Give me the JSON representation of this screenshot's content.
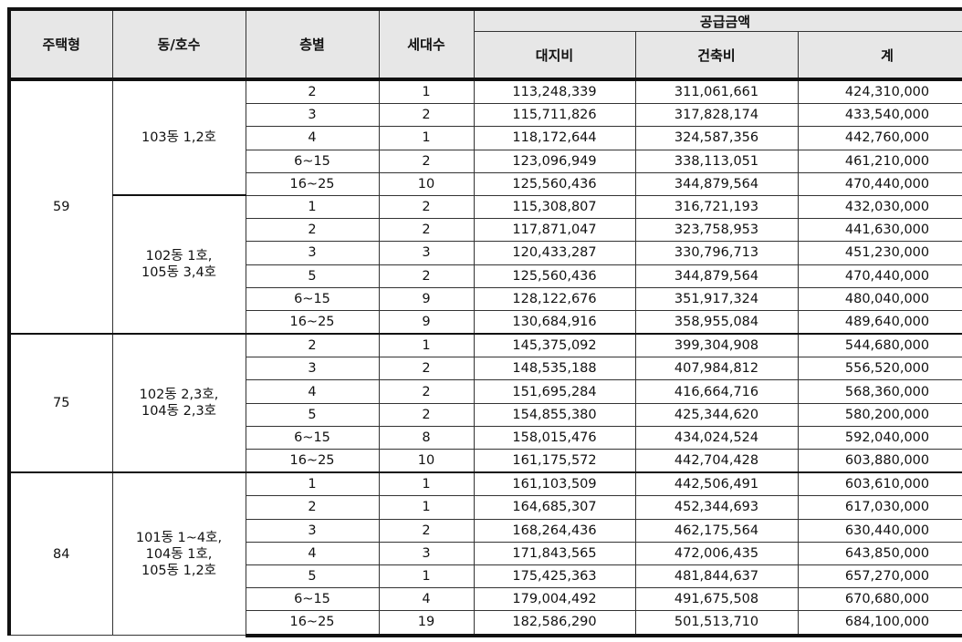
{
  "headers": {
    "type": "주택형",
    "unit": "동/호수",
    "floor": "층별",
    "households": "세대수",
    "supply": "공급금액",
    "land": "대지비",
    "building": "건축비",
    "total": "계"
  },
  "groups": [
    {
      "type": "59",
      "blocks": [
        {
          "unit": "103동 1,2호",
          "rows": [
            [
              "2",
              "1",
              "113,248,339",
              "311,061,661",
              "424,310,000"
            ],
            [
              "3",
              "2",
              "115,711,826",
              "317,828,174",
              "433,540,000"
            ],
            [
              "4",
              "1",
              "118,172,644",
              "324,587,356",
              "442,760,000"
            ],
            [
              "6~15",
              "2",
              "123,096,949",
              "338,113,051",
              "461,210,000"
            ],
            [
              "16~25",
              "10",
              "125,560,436",
              "344,879,564",
              "470,440,000"
            ]
          ]
        },
        {
          "unit": "102동 1호,\n105동 3,4호",
          "rows": [
            [
              "1",
              "2",
              "115,308,807",
              "316,721,193",
              "432,030,000"
            ],
            [
              "2",
              "2",
              "117,871,047",
              "323,758,953",
              "441,630,000"
            ],
            [
              "3",
              "3",
              "120,433,287",
              "330,796,713",
              "451,230,000"
            ],
            [
              "5",
              "2",
              "125,560,436",
              "344,879,564",
              "470,440,000"
            ],
            [
              "6~15",
              "9",
              "128,122,676",
              "351,917,324",
              "480,040,000"
            ],
            [
              "16~25",
              "9",
              "130,684,916",
              "358,955,084",
              "489,640,000"
            ]
          ]
        }
      ]
    },
    {
      "type": "75",
      "blocks": [
        {
          "unit": "102동 2,3호,\n104동 2,3호",
          "rows": [
            [
              "2",
              "1",
              "145,375,092",
              "399,304,908",
              "544,680,000"
            ],
            [
              "3",
              "2",
              "148,535,188",
              "407,984,812",
              "556,520,000"
            ],
            [
              "4",
              "2",
              "151,695,284",
              "416,664,716",
              "568,360,000"
            ],
            [
              "5",
              "2",
              "154,855,380",
              "425,344,620",
              "580,200,000"
            ],
            [
              "6~15",
              "8",
              "158,015,476",
              "434,024,524",
              "592,040,000"
            ],
            [
              "16~25",
              "10",
              "161,175,572",
              "442,704,428",
              "603,880,000"
            ]
          ]
        }
      ]
    },
    {
      "type": "84",
      "blocks": [
        {
          "unit": "101동 1~4호,\n104동 1호,\n105동 1,2호",
          "rows": [
            [
              "1",
              "1",
              "161,103,509",
              "442,506,491",
              "603,610,000"
            ],
            [
              "2",
              "1",
              "164,685,307",
              "452,344,693",
              "617,030,000"
            ],
            [
              "3",
              "2",
              "168,264,436",
              "462,175,564",
              "630,440,000"
            ],
            [
              "4",
              "3",
              "171,843,565",
              "472,006,435",
              "643,850,000"
            ],
            [
              "5",
              "1",
              "175,425,363",
              "481,844,637",
              "657,270,000"
            ],
            [
              "6~15",
              "4",
              "179,004,492",
              "491,675,508",
              "670,680,000"
            ],
            [
              "16~25",
              "19",
              "182,586,290",
              "501,513,710",
              "684,100,000"
            ]
          ]
        }
      ]
    }
  ]
}
